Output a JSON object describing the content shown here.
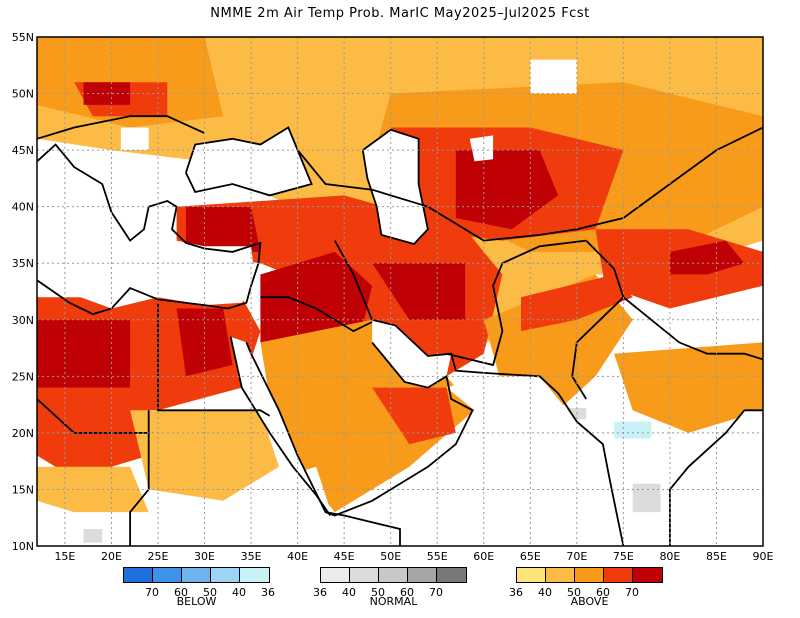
{
  "title": "NMME 2m Air Temp Prob. MarIC  May2025–Jul2025 Fcst",
  "map": {
    "lon_labels": [
      "15E",
      "20E",
      "25E",
      "30E",
      "35E",
      "40E",
      "45E",
      "50E",
      "55E",
      "60E",
      "65E",
      "70E",
      "75E",
      "80E",
      "85E",
      "90E"
    ],
    "lat_labels": [
      "55N",
      "50N",
      "45N",
      "40N",
      "35N",
      "30N",
      "25N",
      "20N",
      "15N",
      "10N"
    ],
    "lon_values": [
      15,
      20,
      25,
      30,
      35,
      40,
      45,
      50,
      55,
      60,
      65,
      70,
      75,
      80,
      85,
      90
    ],
    "lat_values": [
      55,
      50,
      45,
      40,
      35,
      30,
      25,
      20,
      15,
      10
    ],
    "lon_range": [
      12,
      90
    ],
    "lat_range": [
      10,
      55
    ],
    "grid": true
  },
  "legend": {
    "below": {
      "label": "BELOW",
      "ticks": [
        "70",
        "60",
        "50",
        "40",
        "36"
      ],
      "colors": [
        "#1f6fdd",
        "#3d93e8",
        "#6eb3ef",
        "#9dd3f3",
        "#c8f2f6"
      ]
    },
    "normal": {
      "label": "NORMAL",
      "ticks": [
        "36",
        "40",
        "50",
        "60",
        "70"
      ],
      "colors": [
        "#ececec",
        "#dcdcdc",
        "#c8c8c8",
        "#a6a6a6",
        "#787878"
      ]
    },
    "above": {
      "label": "ABOVE",
      "ticks": [
        "36",
        "40",
        "50",
        "60",
        "70"
      ],
      "colors": [
        "#fde57c",
        "#fbbb45",
        "#f89a1a",
        "#f03c0d",
        "#bf0005"
      ]
    }
  },
  "colors": {
    "nodata": "#ffffff",
    "coast": "#000000",
    "grid": "#999999"
  }
}
